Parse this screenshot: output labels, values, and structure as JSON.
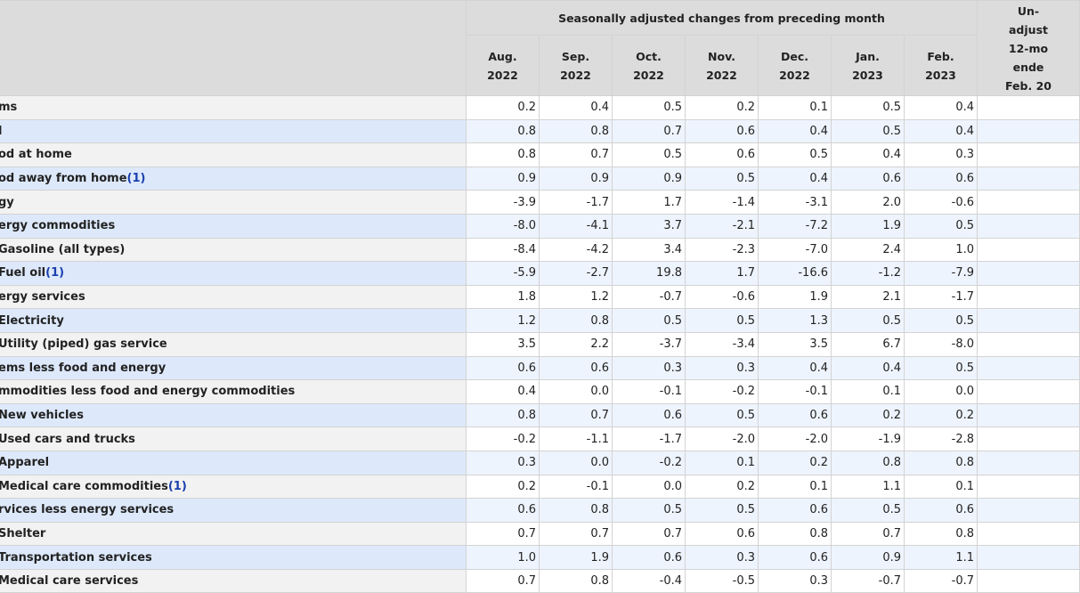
{
  "header": {
    "group_title": "Seasonally adjusted changes from preceding month",
    "months": [
      {
        "month": "Aug.",
        "year": "2022"
      },
      {
        "month": "Sep.",
        "year": "2022"
      },
      {
        "month": "Oct.",
        "year": "2022"
      },
      {
        "month": "Nov.",
        "year": "2022"
      },
      {
        "month": "Dec.",
        "year": "2022"
      },
      {
        "month": "Jan.",
        "year": "2023"
      },
      {
        "month": "Feb.",
        "year": "2023"
      }
    ],
    "unadjusted_lines": [
      "Un-",
      "adjust",
      "12-mo",
      "ende",
      "Feb. 20"
    ]
  },
  "rows": [
    {
      "label": "ms",
      "footnote": "",
      "values": [
        "0.2",
        "0.4",
        "0.5",
        "0.2",
        "0.1",
        "0.5",
        "0.4"
      ]
    },
    {
      "label": "l",
      "footnote": "",
      "values": [
        "0.8",
        "0.8",
        "0.7",
        "0.6",
        "0.4",
        "0.5",
        "0.4"
      ]
    },
    {
      "label": "od at home",
      "footnote": "",
      "values": [
        "0.8",
        "0.7",
        "0.5",
        "0.6",
        "0.5",
        "0.4",
        "0.3"
      ]
    },
    {
      "label": "od away from home",
      "footnote": "(1)",
      "values": [
        "0.9",
        "0.9",
        "0.9",
        "0.5",
        "0.4",
        "0.6",
        "0.6"
      ]
    },
    {
      "label": "gy",
      "footnote": "",
      "values": [
        "-3.9",
        "-1.7",
        "1.7",
        "-1.4",
        "-3.1",
        "2.0",
        "-0.6"
      ]
    },
    {
      "label": "ergy commodities",
      "footnote": "",
      "values": [
        "-8.0",
        "-4.1",
        "3.7",
        "-2.1",
        "-7.2",
        "1.9",
        "0.5"
      ]
    },
    {
      "label": "Gasoline (all types)",
      "footnote": "",
      "values": [
        "-8.4",
        "-4.2",
        "3.4",
        "-2.3",
        "-7.0",
        "2.4",
        "1.0"
      ]
    },
    {
      "label": "Fuel oil",
      "footnote": "(1)",
      "values": [
        "-5.9",
        "-2.7",
        "19.8",
        "1.7",
        "-16.6",
        "-1.2",
        "-7.9"
      ]
    },
    {
      "label": "ergy services",
      "footnote": "",
      "values": [
        "1.8",
        "1.2",
        "-0.7",
        "-0.6",
        "1.9",
        "2.1",
        "-1.7"
      ]
    },
    {
      "label": "Electricity",
      "footnote": "",
      "values": [
        "1.2",
        "0.8",
        "0.5",
        "0.5",
        "1.3",
        "0.5",
        "0.5"
      ]
    },
    {
      "label": "Utility (piped) gas service",
      "footnote": "",
      "values": [
        "3.5",
        "2.2",
        "-3.7",
        "-3.4",
        "3.5",
        "6.7",
        "-8.0"
      ]
    },
    {
      "label": "ems less food and energy",
      "footnote": "",
      "values": [
        "0.6",
        "0.6",
        "0.3",
        "0.3",
        "0.4",
        "0.4",
        "0.5"
      ]
    },
    {
      "label": "mmodities less food and energy commodities",
      "footnote": "",
      "values": [
        "0.4",
        "0.0",
        "-0.1",
        "-0.2",
        "-0.1",
        "0.1",
        "0.0"
      ]
    },
    {
      "label": "New vehicles",
      "footnote": "",
      "values": [
        "0.8",
        "0.7",
        "0.6",
        "0.5",
        "0.6",
        "0.2",
        "0.2"
      ]
    },
    {
      "label": "Used cars and trucks",
      "footnote": "",
      "values": [
        "-0.2",
        "-1.1",
        "-1.7",
        "-2.0",
        "-2.0",
        "-1.9",
        "-2.8"
      ]
    },
    {
      "label": "Apparel",
      "footnote": "",
      "values": [
        "0.3",
        "0.0",
        "-0.2",
        "0.1",
        "0.2",
        "0.8",
        "0.8"
      ]
    },
    {
      "label": "Medical care commodities",
      "footnote": "(1)",
      "values": [
        "0.2",
        "-0.1",
        "0.0",
        "0.2",
        "0.1",
        "1.1",
        "0.1"
      ]
    },
    {
      "label": "rvices less energy services",
      "footnote": "",
      "values": [
        "0.6",
        "0.8",
        "0.5",
        "0.5",
        "0.6",
        "0.5",
        "0.6"
      ]
    },
    {
      "label": "Shelter",
      "footnote": "",
      "values": [
        "0.7",
        "0.7",
        "0.7",
        "0.6",
        "0.8",
        "0.7",
        "0.8"
      ]
    },
    {
      "label": "Transportation services",
      "footnote": "",
      "values": [
        "1.0",
        "1.9",
        "0.6",
        "0.3",
        "0.6",
        "0.9",
        "1.1"
      ]
    },
    {
      "label": "Medical care services",
      "footnote": "",
      "values": [
        "0.7",
        "0.8",
        "-0.4",
        "-0.5",
        "0.3",
        "-0.7",
        "-0.7"
      ]
    }
  ]
}
